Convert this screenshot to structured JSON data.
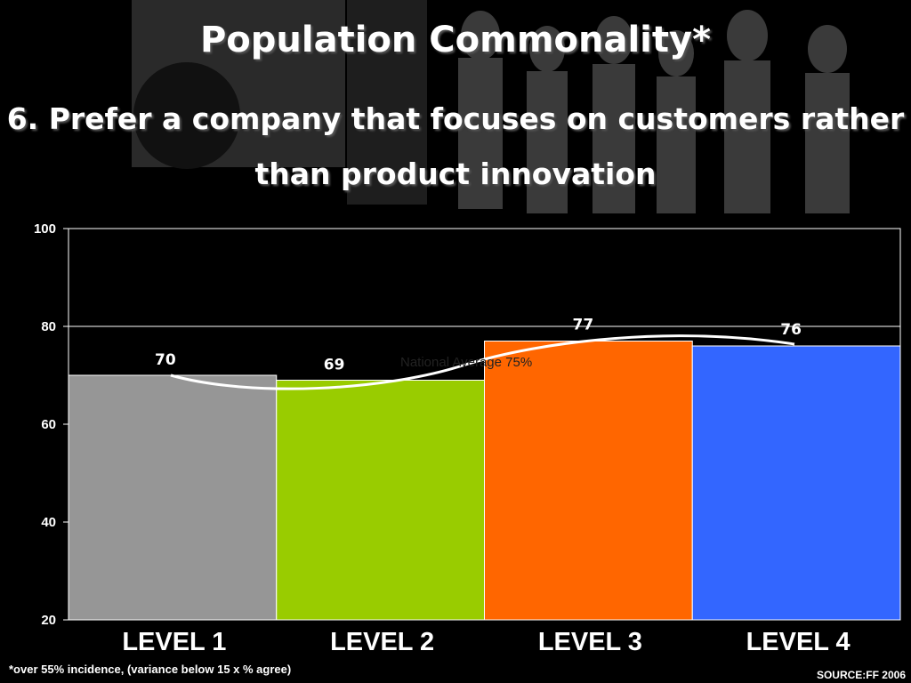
{
  "slide": {
    "title": "Population Commonality*",
    "subtitle": "6. Prefer a company that focuses on customers rather than product innovation",
    "footnote": "*over 55% incidence, (variance below 15 x % agree)",
    "source": "SOURCE:FF 2006"
  },
  "chart_data": {
    "type": "bar",
    "categories": [
      "LEVEL 1",
      "LEVEL 2",
      "LEVEL 3",
      "LEVEL 4"
    ],
    "values": [
      70,
      69,
      77,
      76
    ],
    "value_labels": [
      "70",
      "69",
      "77",
      "76"
    ],
    "colors": [
      "#969696",
      "#99cc00",
      "#ff6600",
      "#3366ff"
    ],
    "ylim": [
      20,
      100
    ],
    "yticks": [
      20,
      40,
      60,
      80,
      100
    ],
    "grid": "horizontal at 80",
    "annotation": "National Average 75%",
    "xlabel": "",
    "ylabel": ""
  }
}
